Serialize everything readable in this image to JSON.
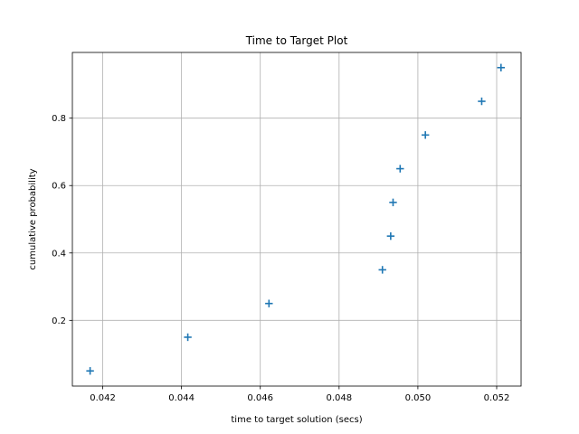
{
  "chart_data": {
    "type": "scatter",
    "title": "Time to Target Plot",
    "xlabel": "time to target solution (secs)",
    "ylabel": "cumulative probability",
    "xlim": [
      0.04123,
      0.05262
    ],
    "ylim": [
      0.005,
      0.995
    ],
    "xticks": [
      0.042,
      0.044,
      0.046,
      0.048,
      0.05,
      0.052
    ],
    "xtick_labels": [
      "0.042",
      "0.044",
      "0.046",
      "0.048",
      "0.050",
      "0.052"
    ],
    "yticks": [
      0.2,
      0.4,
      0.6,
      0.8
    ],
    "ytick_labels": [
      "0.2",
      "0.4",
      "0.6",
      "0.8"
    ],
    "grid": true,
    "marker": "plus",
    "color": "#1f77b4",
    "series": [
      {
        "points": [
          {
            "x": 0.04168,
            "y": 0.05
          },
          {
            "x": 0.04416,
            "y": 0.15
          },
          {
            "x": 0.04622,
            "y": 0.25
          },
          {
            "x": 0.0491,
            "y": 0.35
          },
          {
            "x": 0.04931,
            "y": 0.45
          },
          {
            "x": 0.04937,
            "y": 0.55
          },
          {
            "x": 0.04955,
            "y": 0.65
          },
          {
            "x": 0.05019,
            "y": 0.75
          },
          {
            "x": 0.05162,
            "y": 0.85
          },
          {
            "x": 0.05211,
            "y": 0.95
          }
        ]
      }
    ]
  }
}
